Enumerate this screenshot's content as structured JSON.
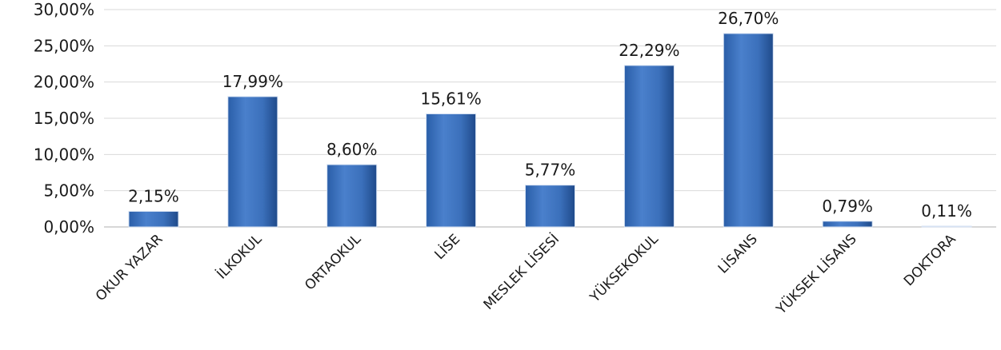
{
  "chart_data": {
    "type": "bar",
    "title": "",
    "xlabel": "",
    "ylabel": "",
    "categories": [
      "OKUR YAZAR",
      "İLKOKUL",
      "ORTAOKUL",
      "LİSE",
      "MESLEK LİSESİ",
      "YÜKSEKOKUL",
      "LİSANS",
      "YÜKSEK LİSANS",
      "DOKTORA"
    ],
    "values": [
      2.15,
      17.99,
      8.6,
      15.61,
      5.77,
      22.29,
      26.7,
      0.79,
      0.11
    ],
    "value_labels": [
      "2,15%",
      "17,99%",
      "8,60%",
      "15,61%",
      "5,77%",
      "22,29%",
      "26,70%",
      "0,79%",
      "0,11%"
    ],
    "ylim": [
      0,
      30
    ],
    "yticks": [
      0,
      5,
      10,
      15,
      20,
      25,
      30
    ],
    "ytick_labels": [
      "0,00%",
      "5,00%",
      "10,00%",
      "15,00%",
      "20,00%",
      "25,00%",
      "30,00%"
    ],
    "grid": true,
    "legend": "none",
    "colors": {
      "bar": "#3f74bf",
      "bar_dark": "#1f4a8a",
      "bar_light": "#6d9ad8"
    }
  }
}
